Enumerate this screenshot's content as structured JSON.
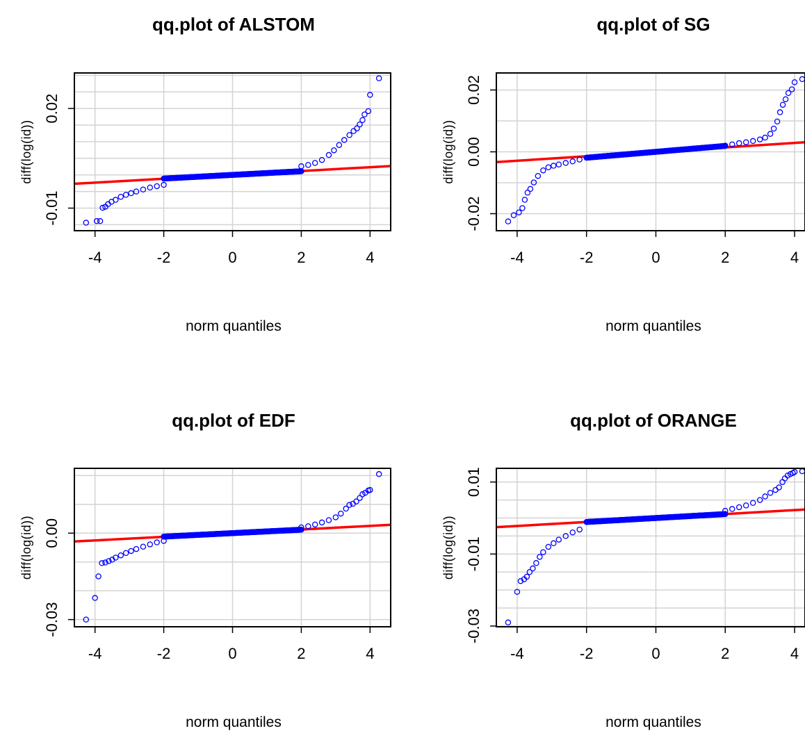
{
  "chart_data": [
    {
      "type": "scatter",
      "title": "qq.plot of  ALSTOM",
      "xlabel": "norm quantiles",
      "ylabel": "diff(log(id))",
      "xlim": [
        -4.6,
        4.6
      ],
      "ylim": [
        -0.0168,
        0.0307
      ],
      "xticks": [
        -4,
        -2,
        0,
        2,
        4
      ],
      "xtick_labels": [
        "-4",
        "-2",
        "0",
        "2",
        "4"
      ],
      "yticks": [
        -0.01,
        0.02
      ],
      "ytick_labels": [
        "-0.01",
        "0.02"
      ],
      "ygrid": [
        -0.015,
        -0.01,
        -0.005,
        0.0,
        0.005,
        0.01,
        0.015,
        0.02,
        0.025,
        0.03
      ],
      "grid": true,
      "point_color": "#0000FF",
      "line_color": "#FF0000",
      "qqline": {
        "slope": 0.00058,
        "intercept": 0.0
      },
      "center_slope": 0.00055,
      "tail_points": [
        [
          -4.26,
          -0.0144
        ],
        [
          -3.95,
          -0.0139
        ],
        [
          -3.85,
          -0.0139
        ],
        [
          -3.78,
          -0.0099
        ],
        [
          -3.7,
          -0.0096
        ],
        [
          -3.62,
          -0.0088
        ],
        [
          -3.52,
          -0.0081
        ],
        [
          -3.4,
          -0.0075
        ],
        [
          -3.25,
          -0.0066
        ],
        [
          -3.1,
          -0.006
        ],
        [
          -2.95,
          -0.0055
        ],
        [
          -2.8,
          -0.005
        ],
        [
          -2.6,
          -0.0044
        ],
        [
          -2.4,
          -0.0038
        ],
        [
          -2.2,
          -0.0034
        ],
        [
          -2.0,
          -0.003
        ],
        [
          2.0,
          0.0026
        ],
        [
          2.2,
          0.003
        ],
        [
          2.4,
          0.0036
        ],
        [
          2.6,
          0.0045
        ],
        [
          2.8,
          0.006
        ],
        [
          2.95,
          0.0074
        ],
        [
          3.1,
          0.009
        ],
        [
          3.25,
          0.0105
        ],
        [
          3.4,
          0.012
        ],
        [
          3.52,
          0.0132
        ],
        [
          3.62,
          0.014
        ],
        [
          3.7,
          0.0152
        ],
        [
          3.78,
          0.0165
        ],
        [
          3.84,
          0.0182
        ],
        [
          3.95,
          0.0192
        ],
        [
          4.0,
          0.0241
        ],
        [
          4.26,
          0.0291
        ]
      ]
    },
    {
      "type": "scatter",
      "title": "qq.plot of  SG",
      "xlabel": "norm quantiles",
      "ylabel": "diff(log(id))",
      "xlim": [
        -4.6,
        4.3
      ],
      "ylim": [
        -0.0255,
        0.0255
      ],
      "xticks": [
        -4,
        -2,
        0,
        2,
        4
      ],
      "xtick_labels": [
        "-4",
        "-2",
        "0",
        "2",
        "4"
      ],
      "yticks": [
        -0.02,
        0.0,
        0.02
      ],
      "ytick_labels": [
        "-0.02",
        "0.00",
        "0.02"
      ],
      "ygrid": [
        -0.02,
        -0.01,
        0.0,
        0.01,
        0.02
      ],
      "grid": true,
      "point_color": "#0000FF",
      "line_color": "#FF0000",
      "qqline": {
        "slope": 0.00072,
        "intercept": 0.0
      },
      "center_slope": 0.00095,
      "tail_points": [
        [
          -4.26,
          -0.0225
        ],
        [
          -4.1,
          -0.0205
        ],
        [
          -3.95,
          -0.0196
        ],
        [
          -3.85,
          -0.0182
        ],
        [
          -3.78,
          -0.0155
        ],
        [
          -3.7,
          -0.0132
        ],
        [
          -3.62,
          -0.012
        ],
        [
          -3.52,
          -0.0099
        ],
        [
          -3.4,
          -0.0078
        ],
        [
          -3.25,
          -0.006
        ],
        [
          -3.1,
          -0.005
        ],
        [
          -2.95,
          -0.0045
        ],
        [
          -2.8,
          -0.0041
        ],
        [
          -2.6,
          -0.0036
        ],
        [
          -2.4,
          -0.0031
        ],
        [
          -2.2,
          -0.0025
        ],
        [
          2.0,
          0.002
        ],
        [
          2.2,
          0.0024
        ],
        [
          2.4,
          0.0028
        ],
        [
          2.6,
          0.0031
        ],
        [
          2.8,
          0.0035
        ],
        [
          3.0,
          0.004
        ],
        [
          3.15,
          0.0046
        ],
        [
          3.3,
          0.0058
        ],
        [
          3.4,
          0.0075
        ],
        [
          3.5,
          0.0098
        ],
        [
          3.58,
          0.0128
        ],
        [
          3.66,
          0.0152
        ],
        [
          3.74,
          0.017
        ],
        [
          3.82,
          0.019
        ],
        [
          3.92,
          0.0202
        ],
        [
          4.0,
          0.0225
        ],
        [
          4.22,
          0.0235
        ]
      ]
    },
    {
      "type": "scatter",
      "title": "qq.plot of  EDF",
      "xlabel": "norm quantiles",
      "ylabel": "diff(log(id))",
      "xlim": [
        -4.6,
        4.6
      ],
      "ylim": [
        -0.0325,
        0.0225
      ],
      "xticks": [
        -4,
        -2,
        0,
        2,
        4
      ],
      "xtick_labels": [
        "-4",
        "-2",
        "0",
        "2",
        "4"
      ],
      "yticks": [
        -0.03,
        0.0
      ],
      "ytick_labels": [
        "-0.03",
        "0.00"
      ],
      "ygrid": [
        -0.03,
        -0.02,
        -0.01,
        0.0,
        0.01,
        0.02
      ],
      "grid": true,
      "point_color": "#0000FF",
      "line_color": "#FF0000",
      "qqline": {
        "slope": 0.00063,
        "intercept": 0.0
      },
      "center_slope": 0.0006,
      "tail_points": [
        [
          -4.26,
          -0.03
        ],
        [
          -4.0,
          -0.0225
        ],
        [
          -3.9,
          -0.015
        ],
        [
          -3.8,
          -0.0104
        ],
        [
          -3.7,
          -0.0102
        ],
        [
          -3.6,
          -0.0097
        ],
        [
          -3.5,
          -0.0092
        ],
        [
          -3.4,
          -0.0085
        ],
        [
          -3.25,
          -0.0077
        ],
        [
          -3.1,
          -0.0069
        ],
        [
          -2.95,
          -0.0062
        ],
        [
          -2.8,
          -0.0055
        ],
        [
          -2.6,
          -0.0047
        ],
        [
          -2.4,
          -0.0039
        ],
        [
          -2.2,
          -0.0032
        ],
        [
          -2.0,
          -0.0027
        ],
        [
          2.0,
          0.002
        ],
        [
          2.2,
          0.0024
        ],
        [
          2.4,
          0.003
        ],
        [
          2.6,
          0.0037
        ],
        [
          2.8,
          0.0045
        ],
        [
          3.0,
          0.0055
        ],
        [
          3.15,
          0.0068
        ],
        [
          3.3,
          0.0085
        ],
        [
          3.4,
          0.0098
        ],
        [
          3.5,
          0.0102
        ],
        [
          3.6,
          0.011
        ],
        [
          3.7,
          0.0122
        ],
        [
          3.78,
          0.0135
        ],
        [
          3.86,
          0.014
        ],
        [
          3.95,
          0.0148
        ],
        [
          4.0,
          0.015
        ],
        [
          4.26,
          0.0205
        ]
      ]
    },
    {
      "type": "scatter",
      "title": "qq.plot of  ORANGE",
      "xlabel": "norm quantiles",
      "ylabel": "diff(log(id))",
      "xlim": [
        -4.6,
        4.3
      ],
      "ylim": [
        -0.0302,
        0.0138
      ],
      "xticks": [
        -4,
        -2,
        0,
        2,
        4
      ],
      "xtick_labels": [
        "-4",
        "-2",
        "0",
        "2",
        "4"
      ],
      "yticks": [
        -0.03,
        -0.01,
        0.01
      ],
      "ytick_labels": [
        "-0.03",
        "-0.01",
        "0.01"
      ],
      "ygrid": [
        -0.03,
        -0.025,
        -0.02,
        -0.015,
        -0.01,
        -0.005,
        0.0,
        0.005,
        0.01
      ],
      "grid": true,
      "point_color": "#0000FF",
      "line_color": "#FF0000",
      "qqline": {
        "slope": 0.00055,
        "intercept": 0.0
      },
      "center_slope": 0.00055,
      "tail_points": [
        [
          -4.26,
          -0.029
        ],
        [
          -4.0,
          -0.0205
        ],
        [
          -3.9,
          -0.0175
        ],
        [
          -3.8,
          -0.017
        ],
        [
          -3.72,
          -0.0163
        ],
        [
          -3.64,
          -0.015
        ],
        [
          -3.55,
          -0.014
        ],
        [
          -3.45,
          -0.0125
        ],
        [
          -3.35,
          -0.0108
        ],
        [
          -3.25,
          -0.0095
        ],
        [
          -3.1,
          -0.008
        ],
        [
          -2.95,
          -0.007
        ],
        [
          -2.8,
          -0.006
        ],
        [
          -2.6,
          -0.005
        ],
        [
          -2.4,
          -0.004
        ],
        [
          -2.2,
          -0.0032
        ],
        [
          2.0,
          0.002
        ],
        [
          2.2,
          0.0025
        ],
        [
          2.4,
          0.003
        ],
        [
          2.6,
          0.0035
        ],
        [
          2.8,
          0.0042
        ],
        [
          3.0,
          0.005
        ],
        [
          3.15,
          0.006
        ],
        [
          3.3,
          0.007
        ],
        [
          3.45,
          0.0078
        ],
        [
          3.55,
          0.0085
        ],
        [
          3.65,
          0.01
        ],
        [
          3.72,
          0.011
        ],
        [
          3.8,
          0.0118
        ],
        [
          3.88,
          0.0122
        ],
        [
          3.95,
          0.0125
        ],
        [
          4.0,
          0.0128
        ],
        [
          4.22,
          0.013
        ]
      ]
    }
  ]
}
